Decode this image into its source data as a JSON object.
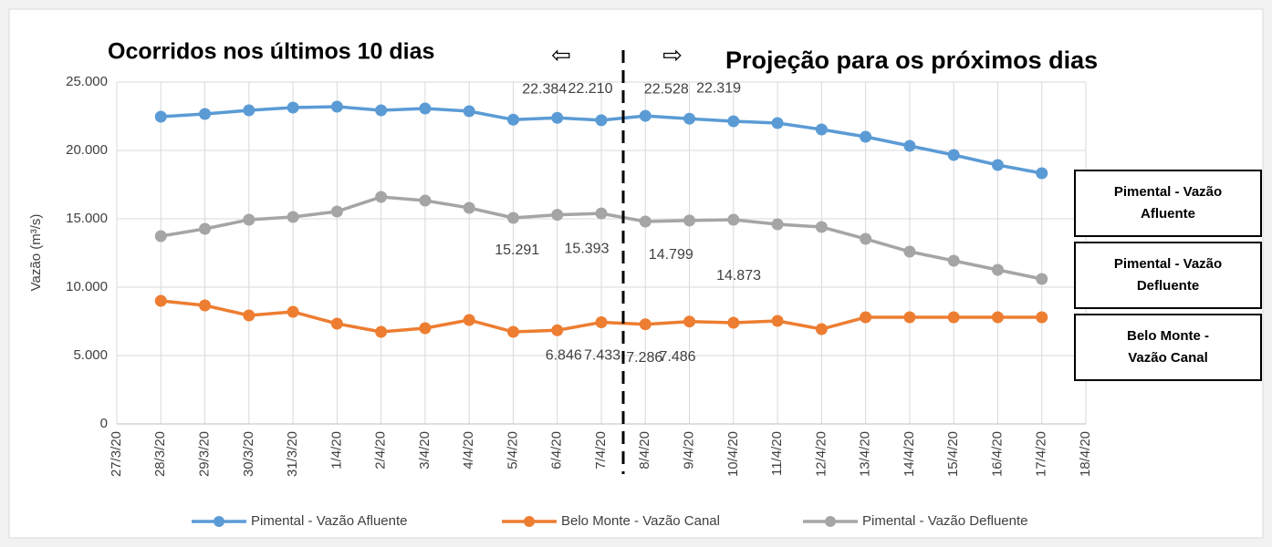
{
  "chart_data": {
    "type": "line",
    "annotations": [
      "Ocorridos nos últimos 10 dias",
      "⇦",
      "⇨",
      "Projeção para os próximos dias"
    ],
    "y_label": "Vazão (m³/s)",
    "categories": [
      "27/3/20",
      "28/3/20",
      "29/3/20",
      "30/3/20",
      "31/3/20",
      "1/4/20",
      "2/4/20",
      "3/4/20",
      "4/4/20",
      "5/4/20",
      "6/4/20",
      "7/4/20",
      "8/4/20",
      "9/4/20",
      "10/4/20",
      "11/4/20",
      "12/4/20",
      "13/4/20",
      "14/4/20",
      "15/4/20",
      "16/4/20",
      "17/4/20",
      "18/4/20"
    ],
    "series": [
      {
        "name": "Pimental - Vazão Afluente",
        "color": "#5b9bd5",
        "values": [
          null,
          22467,
          22667,
          22933,
          23133,
          23200,
          22933,
          23067,
          22867,
          22250,
          22384,
          22210,
          22528,
          22319,
          22133,
          22000,
          21533,
          21000,
          20333,
          19667,
          18933,
          18333,
          null
        ],
        "value_labels": [
          null,
          null,
          null,
          null,
          null,
          null,
          null,
          null,
          null,
          null,
          "22.384",
          "22.210",
          "22.528",
          "22.319",
          null,
          null,
          null,
          null,
          null,
          null,
          null,
          null,
          null
        ]
      },
      {
        "name": "Belo Monte - Vazão Canal",
        "color": "#ed7d31",
        "values": [
          null,
          9000,
          8667,
          7933,
          8200,
          7333,
          6733,
          7000,
          7600,
          6733,
          6846,
          7433,
          7286,
          7486,
          7400,
          7533,
          6933,
          7800,
          7800,
          7800,
          7800,
          7800,
          null
        ],
        "value_labels": [
          null,
          null,
          null,
          null,
          null,
          null,
          null,
          null,
          null,
          null,
          "6.846",
          "7.433",
          "7.286",
          "7.486",
          null,
          null,
          null,
          null,
          null,
          null,
          null,
          null,
          null
        ]
      },
      {
        "name": "Pimental - Vazão Defluente",
        "color": "#a5a5a5",
        "values": [
          null,
          13733,
          14267,
          14933,
          15133,
          15533,
          16600,
          16333,
          15800,
          15067,
          15291,
          15393,
          14799,
          14873,
          14933,
          14600,
          14400,
          13533,
          12600,
          11933,
          11267,
          10600,
          null
        ],
        "value_labels": [
          null,
          null,
          null,
          null,
          null,
          null,
          null,
          null,
          null,
          null,
          "15.291",
          "15.393",
          "14.799",
          "14.873",
          null,
          null,
          null,
          null,
          null,
          null,
          null,
          null,
          null
        ]
      }
    ],
    "side_labels": [
      {
        "lines": [
          "Pimental - Vazão",
          "Afluente"
        ]
      },
      {
        "lines": [
          "Pimental - Vazão",
          "Defluente"
        ]
      },
      {
        "lines": [
          "Belo Monte -",
          "Vazão Canal"
        ]
      }
    ],
    "ylim": [
      0,
      25000
    ],
    "yticks": [
      {
        "value": 0,
        "label": "0"
      },
      {
        "value": 5000,
        "label": "5.000"
      },
      {
        "value": 10000,
        "label": "10.000"
      },
      {
        "value": 15000,
        "label": "15.000"
      },
      {
        "value": 20000,
        "label": "20.000"
      },
      {
        "value": 25000,
        "label": "25.000"
      }
    ],
    "grid": true,
    "legend": "bottom"
  }
}
